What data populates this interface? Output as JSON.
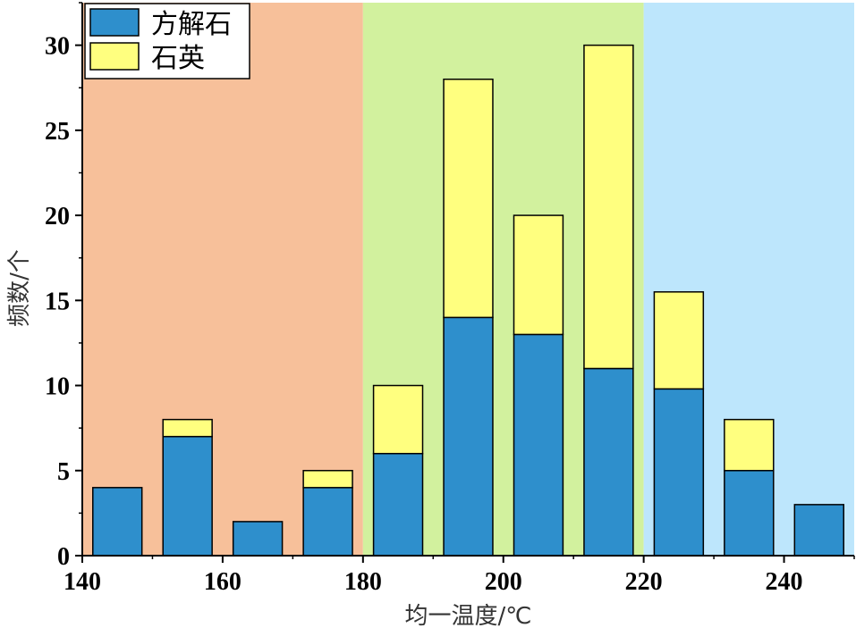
{
  "chart_data": {
    "type": "bar",
    "stacked": true,
    "xlabel": "均一温度/℃",
    "ylabel": "频数/个",
    "xlim": [
      140,
      250
    ],
    "ylim": [
      0,
      32.5
    ],
    "xticks": [
      140,
      160,
      180,
      200,
      220,
      240
    ],
    "yticks": [
      0,
      5,
      10,
      15,
      20,
      25,
      30
    ],
    "bin_width": 10,
    "bins": [
      [
        140,
        150
      ],
      [
        150,
        160
      ],
      [
        160,
        170
      ],
      [
        170,
        180
      ],
      [
        180,
        190
      ],
      [
        190,
        200
      ],
      [
        200,
        210
      ],
      [
        210,
        220
      ],
      [
        220,
        230
      ],
      [
        230,
        240
      ],
      [
        240,
        250
      ]
    ],
    "series": [
      {
        "name": "方解石",
        "color": "#2e8fcc",
        "values": [
          4,
          7,
          2,
          4,
          6,
          14,
          13,
          11,
          9.8,
          5,
          3
        ]
      },
      {
        "name": "石英",
        "color": "#ffff7f",
        "values": [
          0,
          1,
          0,
          1,
          4,
          14,
          7,
          19,
          5.7,
          3,
          0
        ]
      }
    ],
    "background_zones": [
      {
        "from": 140,
        "to": 180,
        "color": "#f7c09a"
      },
      {
        "from": 180,
        "to": 220,
        "color": "#d2f19e"
      },
      {
        "from": 220,
        "to": 250,
        "color": "#bde6fc"
      }
    ],
    "legend_position": "top-left"
  }
}
